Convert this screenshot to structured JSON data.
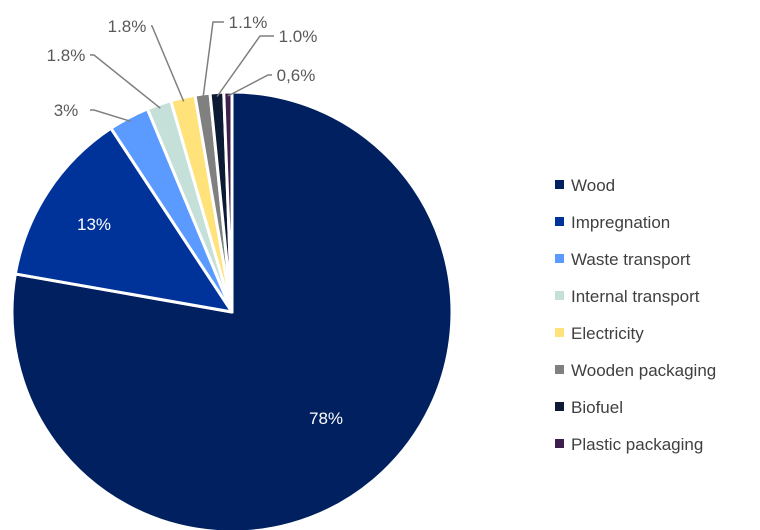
{
  "chart_data": {
    "type": "pie",
    "title": "",
    "legend_position": "right",
    "slices": [
      {
        "name": "Wood",
        "value": 78,
        "label": "78%",
        "color": "#002060"
      },
      {
        "name": "Impregnation",
        "value": 13,
        "label": "13%",
        "color": "#003399"
      },
      {
        "name": "Waste transport",
        "value": 3,
        "label": "3%",
        "color": "#5b9bff"
      },
      {
        "name": "Internal transport",
        "value": 1.8,
        "label": "1.8%",
        "color": "#c5e0d8"
      },
      {
        "name": "Electricity",
        "value": 1.8,
        "label": "1.8%",
        "color": "#ffe27a"
      },
      {
        "name": "Wooden packaging",
        "value": 1.1,
        "label": "1.1%",
        "color": "#808080"
      },
      {
        "name": "Biofuel",
        "value": 1.0,
        "label": "1.0%",
        "color": "#0d1a33"
      },
      {
        "name": "Plastic packaging",
        "value": 0.6,
        "label": "0,6%",
        "color": "#3d1f4d"
      }
    ]
  }
}
